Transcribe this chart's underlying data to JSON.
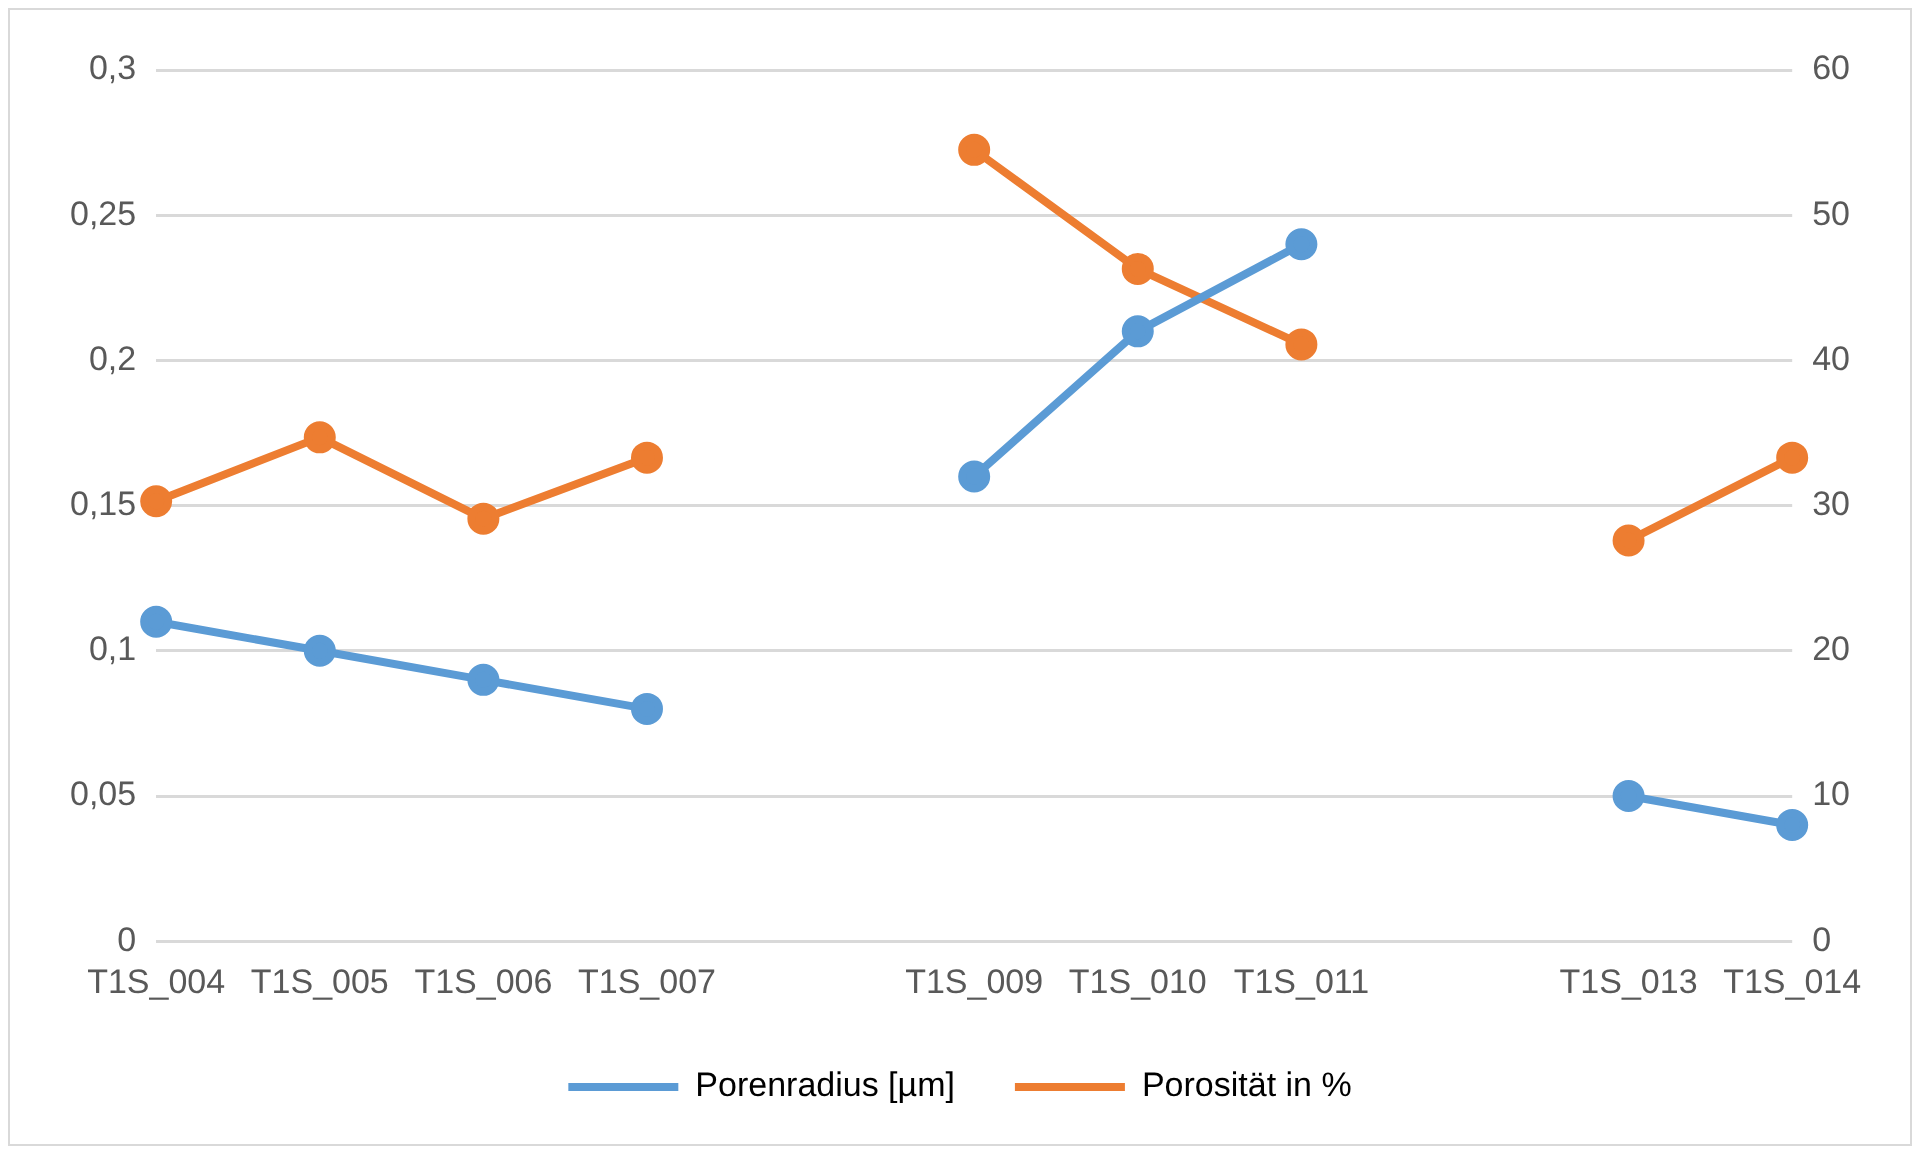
{
  "chart_data": {
    "type": "line",
    "categories": [
      "T1S_004",
      "T1S_005",
      "T1S_006",
      "T1S_007",
      null,
      "T1S_009",
      "T1S_010",
      "T1S_011",
      null,
      "T1S_013",
      "T1S_014"
    ],
    "series": [
      {
        "name": "Porenradius [µm]",
        "color": "#5b9bd5",
        "values": [
          0.11,
          0.1,
          0.09,
          0.08,
          null,
          0.16,
          0.21,
          0.24,
          null,
          0.05,
          0.04
        ]
      },
      {
        "name": "Porosität in %",
        "color": "#ed7d31",
        "axis": "y2",
        "values": [
          30.3,
          34.7,
          29.1,
          33.3,
          null,
          54.5,
          46.3,
          41.1,
          null,
          27.6,
          33.3
        ]
      }
    ],
    "ylim": [
      0,
      0.3
    ],
    "yticks": [
      {
        "value": 0,
        "label": "0"
      },
      {
        "value": 0.05,
        "label": "0,05"
      },
      {
        "value": 0.1,
        "label": "0,1"
      },
      {
        "value": 0.15,
        "label": "0,15"
      },
      {
        "value": 0.2,
        "label": "0,2"
      },
      {
        "value": 0.25,
        "label": "0,25"
      },
      {
        "value": 0.3,
        "label": "0,3"
      }
    ],
    "y2lim": [
      0,
      60
    ],
    "y2ticks": [
      0,
      10,
      20,
      30,
      40,
      50,
      60
    ],
    "grid": "y",
    "legend": "bottom",
    "marker": "circle",
    "line_style": "solid"
  }
}
